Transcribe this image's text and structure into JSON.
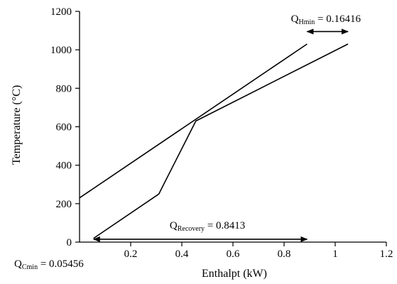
{
  "chart_data": {
    "type": "line",
    "xlabel": "Enthalpt (kW)",
    "ylabel": "Temperature (°C)",
    "xlim": [
      0,
      1.2
    ],
    "ylim": [
      0,
      1200
    ],
    "x_ticks": [
      0.2,
      0.4,
      0.6,
      0.8,
      1,
      1.2
    ],
    "x_tick_labels": [
      "0.2",
      "0.4",
      "0.6",
      "0.8",
      "1",
      "1.2"
    ],
    "y_ticks": [
      0,
      200,
      400,
      600,
      800,
      1000,
      1200
    ],
    "y_tick_labels": [
      "0",
      "200",
      "400",
      "600",
      "800",
      "1000",
      "1200"
    ],
    "grid": false,
    "series": [
      {
        "points": [
          [
            0,
            230
          ],
          [
            0.89,
            1030
          ]
        ]
      },
      {
        "points": [
          [
            0.055,
            20
          ],
          [
            0.31,
            250
          ],
          [
            0.455,
            630
          ],
          [
            1.05,
            1030
          ]
        ]
      }
    ],
    "annotations": [
      {
        "id": "hmin",
        "prefix": "Q",
        "subscript": "Hmin",
        "suffix": " = 0.16416",
        "arrow_x": [
          0.89,
          1.05
        ],
        "arrow_y": 1095,
        "text_anchor": "end",
        "text_y": 1145
      },
      {
        "id": "recovery",
        "prefix": "Q",
        "subscript": "Recovery",
        "suffix": " = 0.8413",
        "arrow_x": [
          0.055,
          0.89
        ],
        "arrow_y": 15,
        "text_anchor": "middle",
        "text_y": 70
      },
      {
        "id": "cmin",
        "prefix": "Q",
        "subscript": "Cmin",
        "suffix": " = 0.05456",
        "text_anchor": "start",
        "text_y": -130
      }
    ]
  }
}
